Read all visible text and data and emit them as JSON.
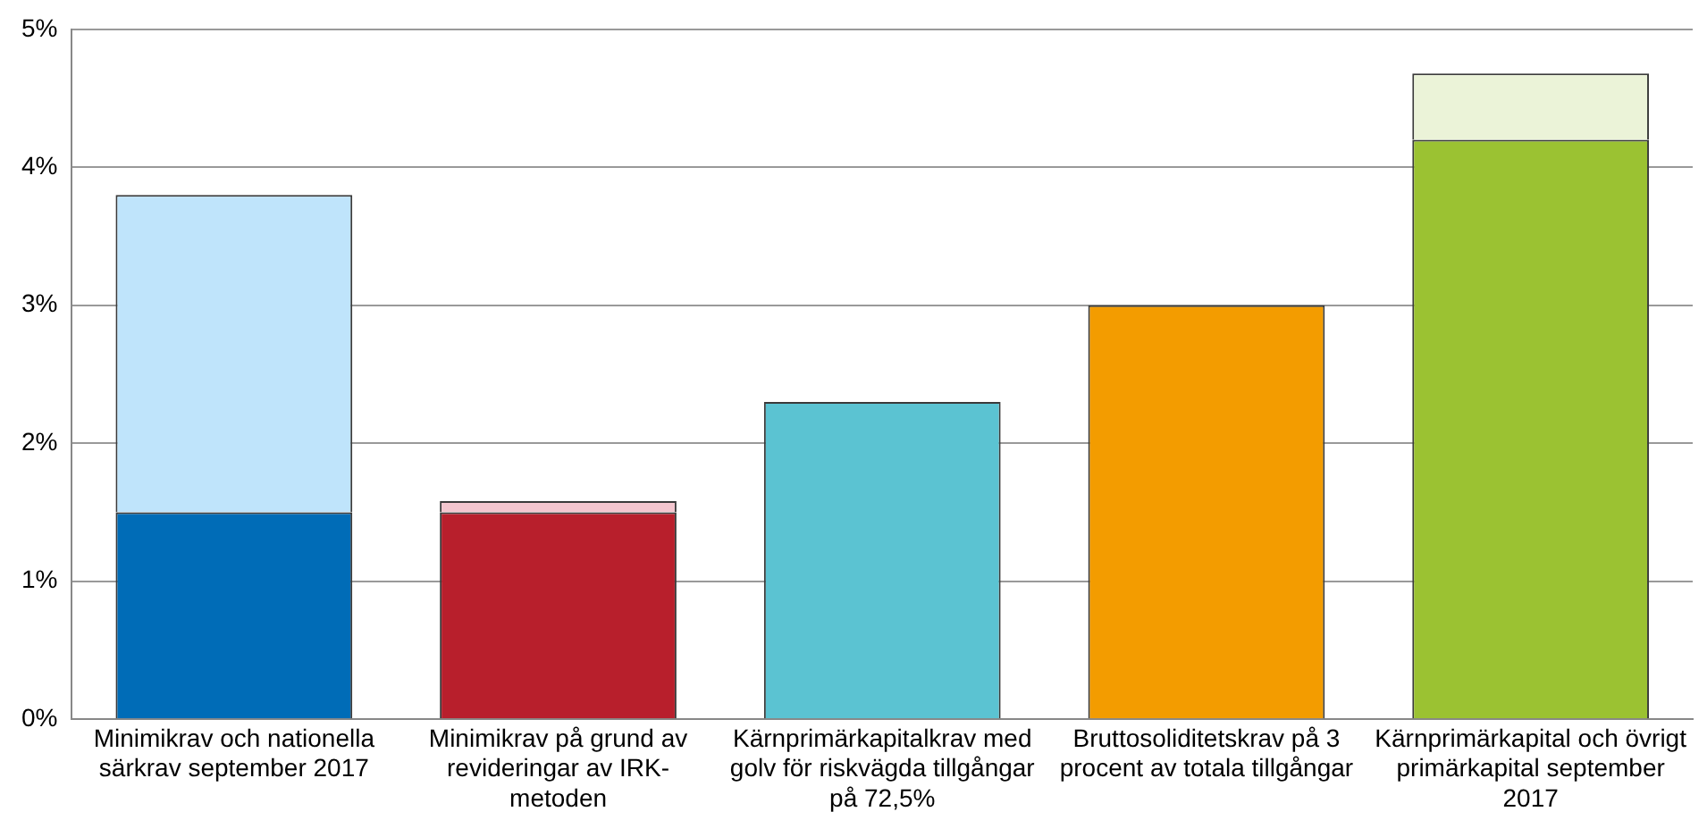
{
  "chart_data": {
    "type": "bar",
    "stacked": true,
    "categories": [
      "Minimikrav och nationella särkrav september 2017",
      "Minimikrav på grund av revideringar av IRK-metoden",
      "Kärnprimärkapitalkrav med golv för riskvägda tillgångar på 72,5%",
      "Bruttosoliditetskrav på 3 procent av totala tillgångar",
      "Kärnprimärkapital och övrigt primärkapital september 2017"
    ],
    "series": [
      {
        "colors": [
          "#006cb7",
          "#b81f2c",
          "#5bc3d2",
          "#f39c00",
          "#9bc232"
        ],
        "values": [
          1.5,
          1.5,
          2.3,
          3.0,
          4.2
        ]
      },
      {
        "colors": [
          "#bfe4fb",
          "#f4c6cf",
          "#5bc3d2",
          "#f39c00",
          "#ebf3d8"
        ],
        "values": [
          2.3,
          0.08,
          null,
          null,
          0.48
        ]
      }
    ],
    "ylim": [
      0,
      5
    ],
    "yticks": [
      {
        "value": 0,
        "label": "0%"
      },
      {
        "value": 1,
        "label": "1%"
      },
      {
        "value": 2,
        "label": "2%"
      },
      {
        "value": 3,
        "label": "3%"
      },
      {
        "value": 4,
        "label": "4%"
      },
      {
        "value": 5,
        "label": "5%"
      }
    ],
    "grid": "y",
    "legend": false
  }
}
